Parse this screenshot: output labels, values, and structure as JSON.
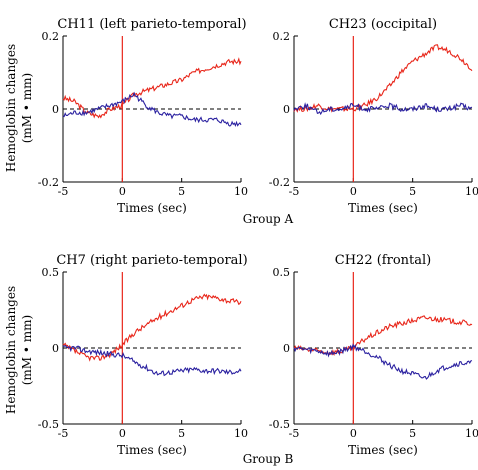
{
  "group_labels": [
    "Group A",
    "Group B"
  ],
  "ylabel_line1": "Hemoglobin changes",
  "ylabel_line2": "(mM • mm)",
  "colors": {
    "oxy": "#e8261a",
    "deoxy": "#2b21a0",
    "stim": "#e8261a",
    "baseline": "#000000"
  },
  "chart_data": [
    {
      "type": "line",
      "title": "CH11 (left parieto-temporal)",
      "xlabel": "Times (sec)",
      "ylabel": "Hemoglobin changes (mM • mm)",
      "xlim": [
        -5,
        10
      ],
      "ylim": [
        -0.2,
        0.2
      ],
      "xticks": [
        -5,
        0,
        5,
        10
      ],
      "yticks": [
        -0.2,
        0,
        0.2
      ],
      "xtick_labels": [
        "-5",
        "0",
        "5",
        "10"
      ],
      "ytick_labels": [
        "-0.2",
        "0",
        "0.2"
      ],
      "stim_line_x": 0,
      "baseline_y": 0,
      "series": [
        {
          "color": "#e8261a",
          "x": [
            -5,
            -4,
            -3,
            -2,
            -1,
            0,
            1,
            2,
            3,
            4,
            5,
            6,
            7,
            8,
            9,
            10
          ],
          "y": [
            0.03,
            0.02,
            -0.01,
            -0.02,
            0.0,
            0.01,
            0.04,
            0.05,
            0.06,
            0.07,
            0.08,
            0.1,
            0.11,
            0.12,
            0.13,
            0.13
          ]
        },
        {
          "color": "#2b21a0",
          "x": [
            -5,
            -4,
            -3,
            -2,
            -1,
            0,
            1,
            2,
            3,
            4,
            5,
            6,
            7,
            8,
            9,
            10
          ],
          "y": [
            -0.02,
            -0.01,
            -0.01,
            0.0,
            0.01,
            0.02,
            0.04,
            0.01,
            -0.01,
            -0.02,
            -0.02,
            -0.03,
            -0.03,
            -0.03,
            -0.04,
            -0.04
          ]
        }
      ]
    },
    {
      "type": "line",
      "title": "CH23 (occipital)",
      "xlabel": "Times (sec)",
      "ylabel": "",
      "xlim": [
        -5,
        10
      ],
      "ylim": [
        -0.2,
        0.2
      ],
      "xticks": [
        -5,
        0,
        5,
        10
      ],
      "yticks": [
        -0.2,
        0,
        0.2
      ],
      "xtick_labels": [
        "-5",
        "0",
        "5",
        "10"
      ],
      "ytick_labels": [
        "-0.2",
        "0",
        "0.2"
      ],
      "stim_line_x": 0,
      "baseline_y": 0,
      "series": [
        {
          "color": "#e8261a",
          "x": [
            -5,
            -4,
            -3,
            -2,
            -1,
            0,
            1,
            2,
            3,
            4,
            5,
            6,
            7,
            8,
            9,
            10
          ],
          "y": [
            0.0,
            0.0,
            0.01,
            0.0,
            0.0,
            0.0,
            0.01,
            0.03,
            0.06,
            0.1,
            0.13,
            0.15,
            0.17,
            0.16,
            0.14,
            0.11
          ]
        },
        {
          "color": "#2b21a0",
          "x": [
            -5,
            -4,
            -3,
            -2,
            -1,
            0,
            1,
            2,
            3,
            4,
            5,
            6,
            7,
            8,
            9,
            10
          ],
          "y": [
            0.0,
            0.01,
            -0.01,
            0.0,
            0.0,
            0.01,
            0.0,
            0.0,
            0.01,
            0.0,
            0.0,
            0.01,
            0.0,
            0.0,
            0.01,
            0.0
          ]
        }
      ]
    },
    {
      "type": "line",
      "title": "CH7 (right parieto-temporal)",
      "xlabel": "Times (sec)",
      "ylabel": "Hemoglobin changes (mM • mm)",
      "xlim": [
        -5,
        10
      ],
      "ylim": [
        -0.5,
        0.5
      ],
      "xticks": [
        -5,
        0,
        5,
        10
      ],
      "yticks": [
        -0.5,
        0,
        0.5
      ],
      "xtick_labels": [
        "-5",
        "0",
        "5",
        "10"
      ],
      "ytick_labels": [
        "-0.5",
        "0",
        "0.5"
      ],
      "stim_line_x": 0,
      "baseline_y": 0,
      "series": [
        {
          "color": "#e8261a",
          "x": [
            -5,
            -4,
            -3,
            -2,
            -1,
            0,
            1,
            2,
            3,
            4,
            5,
            6,
            7,
            8,
            9,
            10
          ],
          "y": [
            0.02,
            -0.02,
            -0.06,
            -0.07,
            -0.04,
            0.02,
            0.1,
            0.15,
            0.2,
            0.24,
            0.28,
            0.32,
            0.34,
            0.33,
            0.31,
            0.3
          ]
        },
        {
          "color": "#2b21a0",
          "x": [
            -5,
            -4,
            -3,
            -2,
            -1,
            0,
            1,
            2,
            3,
            4,
            5,
            6,
            7,
            8,
            9,
            10
          ],
          "y": [
            0.0,
            0.0,
            -0.02,
            -0.03,
            -0.04,
            -0.05,
            -0.09,
            -0.13,
            -0.17,
            -0.16,
            -0.15,
            -0.14,
            -0.15,
            -0.15,
            -0.16,
            -0.15
          ]
        }
      ]
    },
    {
      "type": "line",
      "title": "CH22 (frontal)",
      "xlabel": "Times (sec)",
      "ylabel": "",
      "xlim": [
        -5,
        10
      ],
      "ylim": [
        -0.5,
        0.5
      ],
      "xticks": [
        -5,
        0,
        5,
        10
      ],
      "yticks": [
        -0.5,
        0,
        0.5
      ],
      "xtick_labels": [
        "-5",
        "0",
        "5",
        "10"
      ],
      "ytick_labels": [
        "-0.5",
        "0",
        "0.5"
      ],
      "stim_line_x": 0,
      "baseline_y": 0,
      "series": [
        {
          "color": "#e8261a",
          "x": [
            -5,
            -4,
            -3,
            -2,
            -1,
            0,
            1,
            2,
            3,
            4,
            5,
            6,
            7,
            8,
            9,
            10
          ],
          "y": [
            0.0,
            -0.01,
            -0.02,
            -0.03,
            -0.02,
            0.0,
            0.06,
            0.1,
            0.14,
            0.16,
            0.18,
            0.2,
            0.19,
            0.18,
            0.17,
            0.16
          ]
        },
        {
          "color": "#2b21a0",
          "x": [
            -5,
            -4,
            -3,
            -2,
            -1,
            0,
            1,
            2,
            3,
            4,
            5,
            6,
            7,
            8,
            9,
            10
          ],
          "y": [
            0.0,
            -0.01,
            -0.02,
            -0.04,
            -0.02,
            0.01,
            -0.02,
            -0.06,
            -0.11,
            -0.15,
            -0.17,
            -0.2,
            -0.15,
            -0.12,
            -0.1,
            -0.1
          ]
        }
      ]
    }
  ]
}
